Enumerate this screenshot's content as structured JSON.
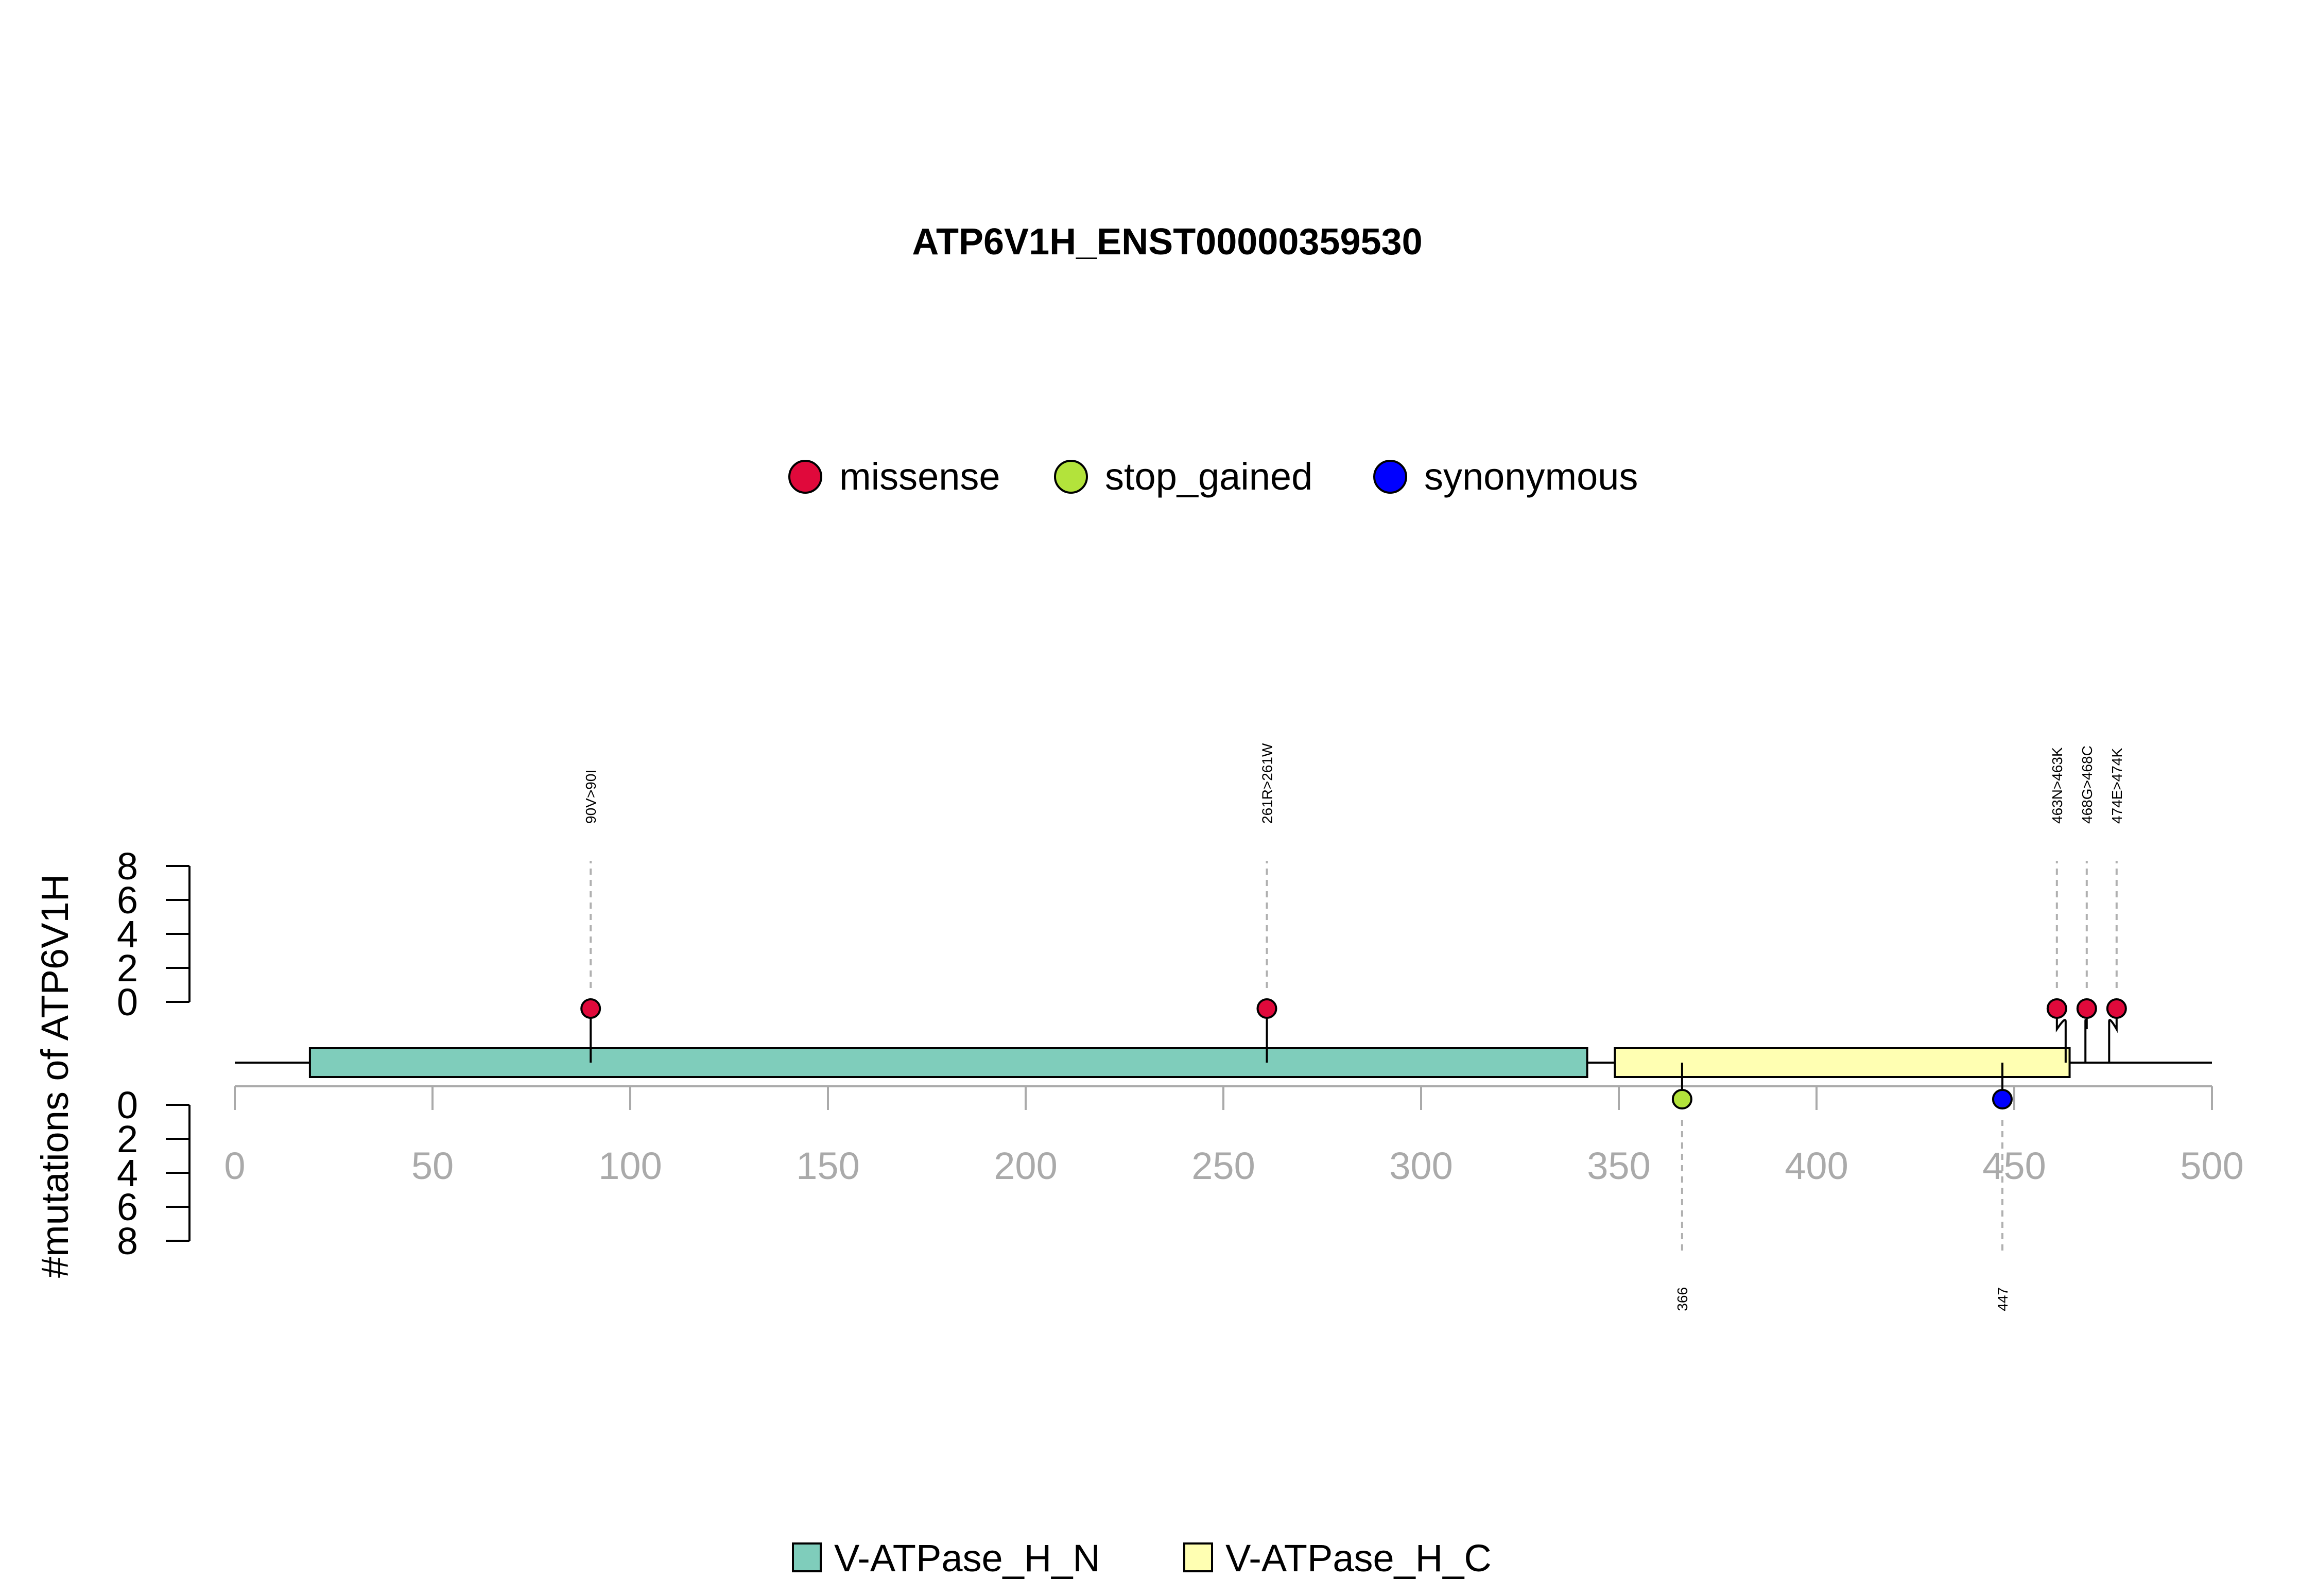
{
  "chart_data": {
    "type": "lollipop",
    "title": "ATP6V1H_ENST00000359530",
    "ylabel": "#mutations of ATP6V1H",
    "xlim": [
      0,
      500
    ],
    "ylim": [
      0,
      8
    ],
    "x_ticks": [
      0,
      50,
      100,
      150,
      200,
      250,
      300,
      350,
      400,
      450,
      500
    ],
    "y_ticks": [
      0,
      2,
      4,
      6,
      8
    ],
    "legend_mutation_types": [
      {
        "name": "missense",
        "color": "#e0093b"
      },
      {
        "name": "stop_gained",
        "color": "#b3e33b"
      },
      {
        "name": "synonymous",
        "color": "#0000ff"
      }
    ],
    "legend_placement": "top-center",
    "domains": [
      {
        "name": "V-ATPase_H_N",
        "start": 19,
        "end": 342,
        "color": "#7fcdbb"
      },
      {
        "name": "V-ATPase_H_C",
        "start": 349,
        "end": 464,
        "color": "#ffffb2"
      }
    ],
    "domain_legend_placement": "bottom-center",
    "mutations_top": [
      {
        "position": 90,
        "count": 1,
        "type": "missense",
        "label": "90V>90I"
      },
      {
        "position": 261,
        "count": 1,
        "type": "missense",
        "label": "261R>261W"
      },
      {
        "position": 463,
        "count": 1,
        "type": "missense",
        "label": "463N>463K"
      },
      {
        "position": 468,
        "count": 1,
        "type": "missense",
        "label": "468G>468C"
      },
      {
        "position": 474,
        "count": 1,
        "type": "missense",
        "label": "474E>474K"
      }
    ],
    "mutations_bottom": [
      {
        "position": 366,
        "count": 1,
        "type": "stop_gained",
        "label": "366"
      },
      {
        "position": 447,
        "count": 1,
        "type": "synonymous",
        "label": "447"
      }
    ]
  }
}
